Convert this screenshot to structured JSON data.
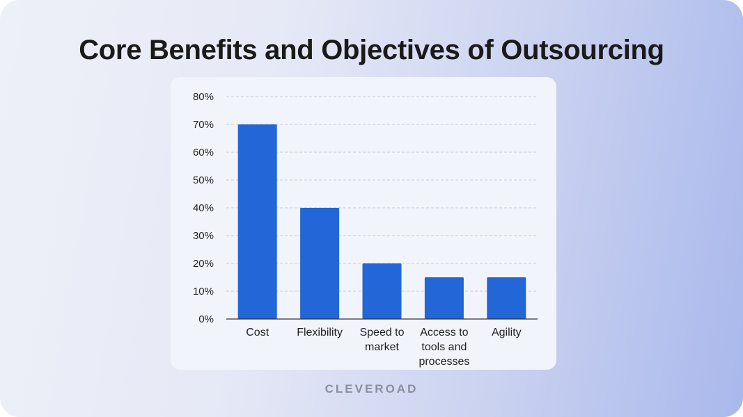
{
  "title": "Core Benefits and Objectives of Outsourcing",
  "brand": "CLEVEROAD",
  "colors": {
    "bar": "#2266d8",
    "grid": "#c8ccd6",
    "axis": "#333333",
    "panel": "#f2f4fb"
  },
  "chart_data": {
    "type": "bar",
    "categories": [
      "Cost",
      "Flexibility",
      "Speed to market",
      "Access to tools and processes",
      "Agility"
    ],
    "category_lines": [
      [
        "Cost"
      ],
      [
        "Flexibility"
      ],
      [
        "Speed to",
        "market"
      ],
      [
        "Access to",
        "tools and",
        "processes"
      ],
      [
        "Agility"
      ]
    ],
    "values": [
      70,
      40,
      20,
      15,
      15
    ],
    "ylim": [
      0,
      80
    ],
    "yticks": [
      0,
      10,
      20,
      30,
      40,
      50,
      60,
      70,
      80
    ],
    "ytick_labels": [
      "0%",
      "10%",
      "20%",
      "30%",
      "40%",
      "50%",
      "60%",
      "70%",
      "80%"
    ],
    "xlabel": "",
    "ylabel": "",
    "grid": true,
    "legend": "none"
  }
}
